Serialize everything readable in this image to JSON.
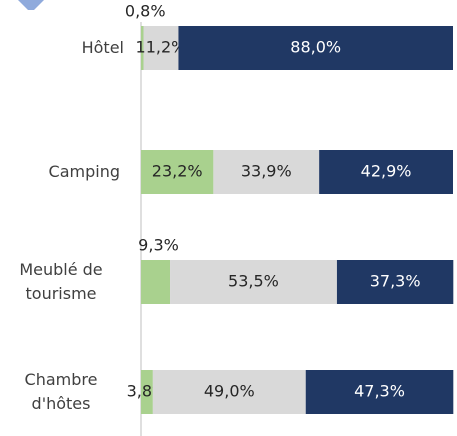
{
  "chart_data": {
    "type": "stacked_barh",
    "categories": [
      "Hôtel",
      "Camping",
      "Meublé de tourisme",
      "Chambre d'hôtes"
    ],
    "series": [
      {
        "color": "#a9d18e",
        "values": [
          0.8,
          23.2,
          9.3,
          3.8
        ],
        "value_labels": [
          "0,8%",
          "23,2%",
          "9,3%",
          "3,8%"
        ]
      },
      {
        "color": "#d9d9d9",
        "values": [
          11.2,
          33.9,
          53.5,
          49.0
        ],
        "value_labels": [
          "11,2%",
          "33,9%",
          "53,5%",
          "49,0%"
        ]
      },
      {
        "color": "#203864",
        "values": [
          88.0,
          42.9,
          37.3,
          47.3
        ],
        "value_labels": [
          "88,0%",
          "42,9%",
          "37,3%",
          "47,3%"
        ]
      }
    ],
    "xlim": [
      0,
      100
    ]
  }
}
